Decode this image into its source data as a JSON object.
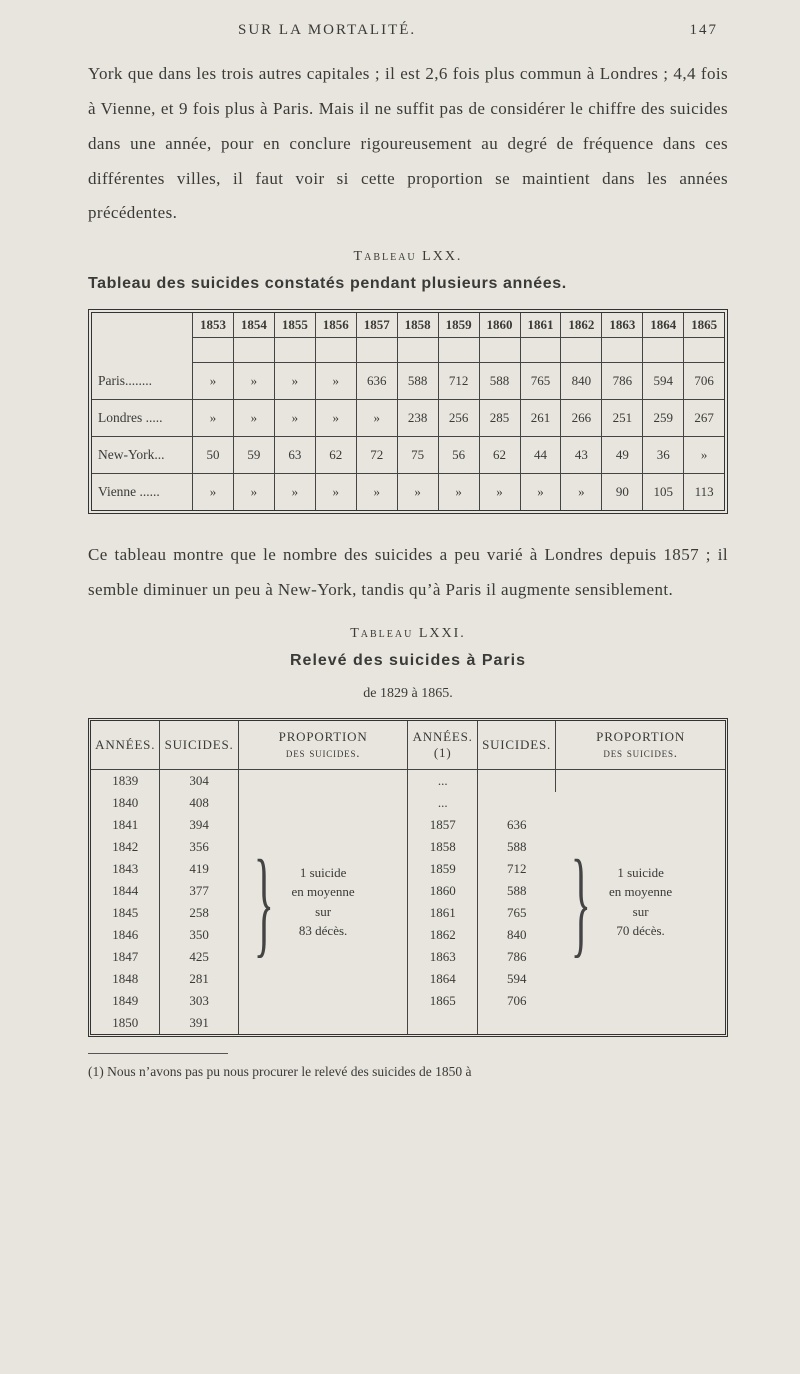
{
  "page": {
    "running_head": "SUR LA MORTALITÉ.",
    "page_number": "147"
  },
  "paragraphs": {
    "p1": "York que dans les trois autres capitales ; il est 2,6 fois plus commun à Londres ; 4,4 fois à Vienne, et 9 fois plus à Paris. Mais il ne suffit pas de considérer le chiffre des suicides dans une année, pour en conclure rigoureusement au degré de fréquence dans ces différentes villes, il faut voir si cette proportion se maintient dans les années précédentes.",
    "p2": "Ce tableau montre que le nombre des suicides a peu varié à Londres depuis 1857 ; il semble diminuer un peu à New-York, tandis qu’à Paris il augmente sensiblement."
  },
  "tableA": {
    "caption_small": "Tableau LXX.",
    "title": "Tableau des suicides constatés pendant plusieurs années.",
    "years": [
      "1853",
      "1854",
      "1855",
      "1856",
      "1857",
      "1858",
      "1859",
      "1860",
      "1861",
      "1862",
      "1863",
      "1864",
      "1865"
    ],
    "rows": [
      {
        "label": "Paris........",
        "cells": [
          "»",
          "»",
          "»",
          "»",
          "636",
          "588",
          "712",
          "588",
          "765",
          "840",
          "786",
          "594",
          "706"
        ]
      },
      {
        "label": "Londres .....",
        "cells": [
          "»",
          "»",
          "»",
          "»",
          "»",
          "238",
          "256",
          "285",
          "261",
          "266",
          "251",
          "259",
          "267"
        ]
      },
      {
        "label": "New-York...",
        "cells": [
          "50",
          "59",
          "63",
          "62",
          "72",
          "75",
          "56",
          "62",
          "44",
          "43",
          "49",
          "36",
          "»"
        ]
      },
      {
        "label": "Vienne ......",
        "cells": [
          "»",
          "»",
          "»",
          "»",
          "»",
          "»",
          "»",
          "»",
          "»",
          "»",
          "90",
          "105",
          "113"
        ]
      }
    ]
  },
  "tableB": {
    "caption_small": "Tableau LXXI.",
    "title": "Relevé des suicides à Paris",
    "subtitle": "de 1829 à 1865.",
    "headers": {
      "c1": "ANNÉES.",
      "c2": "SUICIDES.",
      "c3": "PROPORTION\ndes suicides.",
      "c4": "ANNÉES.\n(1)",
      "c5": "SUICIDES.",
      "c6": "PROPORTION\ndes suicides."
    },
    "left": {
      "years": [
        "1839",
        "1840",
        "1841",
        "1842",
        "1843",
        "1844",
        "1845",
        "1846",
        "1847",
        "1848",
        "1849",
        "1850"
      ],
      "su": [
        "304",
        "408",
        "394",
        "356",
        "419",
        "377",
        "258",
        "350",
        "425",
        "281",
        "303",
        "391"
      ],
      "prop_lines": [
        "1 suicide",
        "en moyenne",
        "sur",
        "83 décès."
      ]
    },
    "right": {
      "years": [
        "...",
        "...",
        "1857",
        "1858",
        "1859",
        "1860",
        "1861",
        "1862",
        "1863",
        "1864",
        "1865",
        ""
      ],
      "su": [
        "",
        "",
        "636",
        "588",
        "712",
        "588",
        "765",
        "840",
        "786",
        "594",
        "706",
        ""
      ],
      "prop_lines": [
        "1 suicide",
        "en moyenne",
        "sur",
        "70 décès."
      ]
    }
  },
  "footnote": {
    "marker": "(1)",
    "text": "Nous n’avons pas pu nous procurer le relevé des suicides de 1850 à"
  },
  "colors": {
    "bg": "#e8e5de",
    "text": "#3a3a36",
    "rule": "#333333"
  }
}
